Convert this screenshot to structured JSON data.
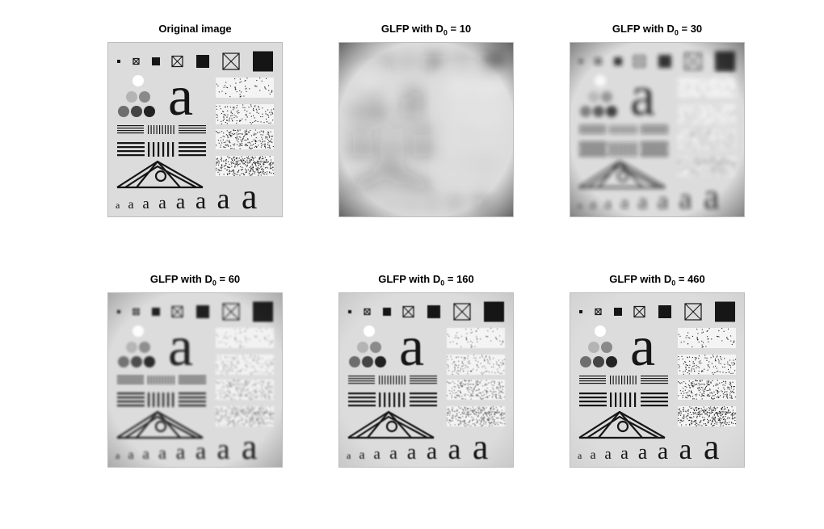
{
  "figure": {
    "panels": [
      {
        "id": "p1",
        "title": "Original image",
        "title_prefix": "",
        "title_sub": "",
        "title_suffix": "",
        "blur": 0,
        "contrast": 1.0,
        "vignette": 0
      },
      {
        "id": "p2",
        "title": "",
        "title_prefix": "GLFP with D",
        "title_sub": "0",
        "title_suffix": " = 10",
        "blur": 9,
        "contrast": 0.55,
        "vignette": 0.6
      },
      {
        "id": "p3",
        "title": "",
        "title_prefix": "GLFP with D",
        "title_sub": "0",
        "title_suffix": " = 30",
        "blur": 2.6,
        "contrast": 0.85,
        "vignette": 0.45
      },
      {
        "id": "p4",
        "title": "",
        "title_prefix": "GLFP with D",
        "title_sub": "0",
        "title_suffix": " = 60",
        "blur": 1.2,
        "contrast": 0.95,
        "vignette": 0.25
      },
      {
        "id": "p5",
        "title": "",
        "title_prefix": "GLFP with D",
        "title_sub": "0",
        "title_suffix": " = 160",
        "blur": 0.5,
        "contrast": 1.0,
        "vignette": 0.1
      },
      {
        "id": "p6",
        "title": "",
        "title_prefix": "GLFP with D",
        "title_sub": "0",
        "title_suffix": " = 460",
        "blur": 0.2,
        "contrast": 1.0,
        "vignette": 0.05
      }
    ],
    "test_pattern": {
      "letter": "a"
    }
  }
}
